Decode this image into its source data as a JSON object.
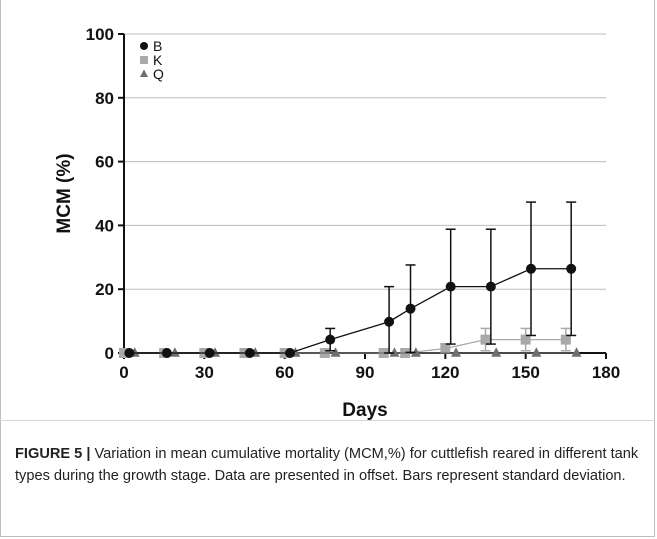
{
  "chart_data": {
    "type": "line",
    "xlabel": "Days",
    "ylabel": "MCM (%)",
    "xlim": [
      0,
      180
    ],
    "ylim": [
      0,
      100
    ],
    "x_ticks": [
      0,
      30,
      60,
      90,
      120,
      150,
      180
    ],
    "y_ticks": [
      0,
      20,
      40,
      60,
      80,
      100
    ],
    "grid": "horizontal",
    "legend_position": "top-left",
    "series": [
      {
        "name": "B",
        "marker": "circle",
        "color": "#111111",
        "x": [
          2,
          16,
          32,
          47,
          62,
          77,
          99,
          107,
          122,
          137,
          152,
          167
        ],
        "y": [
          0,
          0,
          0,
          0,
          0,
          4.2,
          9.8,
          13.9,
          20.8,
          20.8,
          26.4,
          26.4
        ],
        "sd": [
          0,
          0,
          0,
          0,
          0,
          3.5,
          11,
          13.7,
          18,
          18,
          20.9,
          20.9
        ]
      },
      {
        "name": "K",
        "marker": "square",
        "color": "#a9a9a9",
        "x": [
          0,
          15,
          30,
          45,
          60,
          75,
          97,
          105,
          120,
          135,
          150,
          165
        ],
        "y": [
          0,
          0,
          0,
          0,
          0,
          0,
          0,
          0,
          1.4,
          4.2,
          4.2,
          4.2
        ],
        "sd": [
          0,
          0,
          0,
          0,
          0,
          0,
          0,
          0,
          1.5,
          3.5,
          3.5,
          3.5
        ]
      },
      {
        "name": "Q",
        "marker": "triangle",
        "color": "#6e6e6e",
        "x": [
          4,
          19,
          34,
          49,
          64,
          79,
          101,
          109,
          124,
          139,
          154,
          169
        ],
        "y": [
          0,
          0,
          0,
          0,
          0,
          0,
          0,
          0,
          0,
          0,
          0,
          0
        ],
        "sd": [
          0,
          0,
          0,
          0,
          0,
          0,
          0,
          0,
          0,
          0,
          0,
          0
        ]
      }
    ]
  },
  "caption": {
    "lead": "FIGURE 5 |",
    "text": " Variation in mean cumulative mortality (MCM,%) for cuttlefish reared in different tank types during the growth stage. Data are presented in offset. Bars represent standard deviation."
  }
}
